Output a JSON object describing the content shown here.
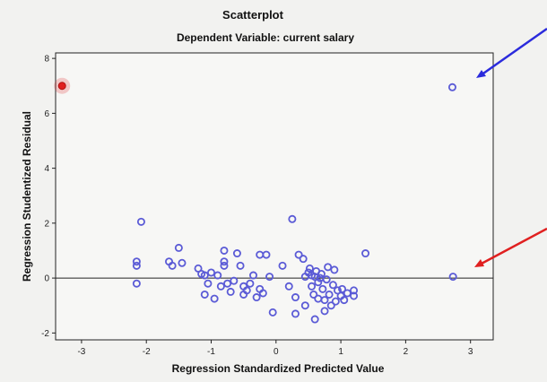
{
  "chart_data": {
    "type": "scatter",
    "title": "Scatterplot",
    "subtitle": "Dependent Variable: current salary",
    "xlabel": "Regression Standardized Predicted Value",
    "ylabel": "Regression Studentized Residual",
    "xlim": [
      -3.4,
      3.35
    ],
    "ylim": [
      -2.25,
      8.2
    ],
    "xticks": [
      -3,
      -2,
      -1,
      0,
      1,
      2,
      3
    ],
    "yticks": [
      -2,
      0,
      2,
      4,
      6,
      8
    ],
    "reference_line_y": 0,
    "grid": false,
    "marker_color": "#5b5bd6",
    "highlight_color": "#e02020",
    "arrow_colors": [
      "#2b2bdc",
      "#e02020"
    ],
    "highlighted_point": {
      "x": -3.3,
      "y": 7.0
    },
    "points": [
      {
        "x": 2.72,
        "y": 6.95
      },
      {
        "x": 2.73,
        "y": 0.05
      },
      {
        "x": -2.08,
        "y": 2.05
      },
      {
        "x": 0.25,
        "y": 2.15
      },
      {
        "x": -2.15,
        "y": 0.6
      },
      {
        "x": -2.15,
        "y": 0.45
      },
      {
        "x": -2.15,
        "y": -0.2
      },
      {
        "x": -1.65,
        "y": 0.6
      },
      {
        "x": -1.6,
        "y": 0.45
      },
      {
        "x": -1.5,
        "y": 1.1
      },
      {
        "x": -1.45,
        "y": 0.55
      },
      {
        "x": -1.2,
        "y": 0.35
      },
      {
        "x": -1.15,
        "y": 0.15
      },
      {
        "x": -1.1,
        "y": 0.1
      },
      {
        "x": -1.05,
        "y": -0.2
      },
      {
        "x": -1.1,
        "y": -0.6
      },
      {
        "x": -1.0,
        "y": 0.2
      },
      {
        "x": -0.95,
        "y": -0.75
      },
      {
        "x": -0.9,
        "y": 0.1
      },
      {
        "x": -0.85,
        "y": -0.3
      },
      {
        "x": -0.8,
        "y": 1.0
      },
      {
        "x": -0.8,
        "y": 0.6
      },
      {
        "x": -0.8,
        "y": 0.45
      },
      {
        "x": -0.75,
        "y": -0.2
      },
      {
        "x": -0.7,
        "y": -0.5
      },
      {
        "x": -0.65,
        "y": -0.1
      },
      {
        "x": -0.6,
        "y": 0.9
      },
      {
        "x": -0.55,
        "y": 0.45
      },
      {
        "x": -0.5,
        "y": -0.3
      },
      {
        "x": -0.5,
        "y": -0.6
      },
      {
        "x": -0.45,
        "y": -0.45
      },
      {
        "x": -0.4,
        "y": -0.2
      },
      {
        "x": -0.35,
        "y": 0.1
      },
      {
        "x": -0.3,
        "y": -0.7
      },
      {
        "x": -0.25,
        "y": -0.4
      },
      {
        "x": -0.25,
        "y": 0.85
      },
      {
        "x": -0.2,
        "y": -0.55
      },
      {
        "x": -0.15,
        "y": 0.85
      },
      {
        "x": -0.1,
        "y": 0.05
      },
      {
        "x": -0.05,
        "y": -1.25
      },
      {
        "x": 0.1,
        "y": 0.45
      },
      {
        "x": 0.2,
        "y": -0.3
      },
      {
        "x": 0.3,
        "y": -0.7
      },
      {
        "x": 0.3,
        "y": -1.3
      },
      {
        "x": 0.35,
        "y": 0.85
      },
      {
        "x": 0.42,
        "y": 0.7
      },
      {
        "x": 0.45,
        "y": 0.05
      },
      {
        "x": 0.45,
        "y": -1.0
      },
      {
        "x": 0.5,
        "y": 0.2
      },
      {
        "x": 0.52,
        "y": 0.35
      },
      {
        "x": 0.55,
        "y": 0.1
      },
      {
        "x": 0.55,
        "y": -0.3
      },
      {
        "x": 0.58,
        "y": -0.6
      },
      {
        "x": 0.6,
        "y": 0.05
      },
      {
        "x": 0.6,
        "y": -1.5
      },
      {
        "x": 0.62,
        "y": 0.25
      },
      {
        "x": 0.65,
        "y": -0.15
      },
      {
        "x": 0.65,
        "y": -0.75
      },
      {
        "x": 0.68,
        "y": 0.0
      },
      {
        "x": 0.7,
        "y": 0.15
      },
      {
        "x": 0.72,
        "y": -0.4
      },
      {
        "x": 0.75,
        "y": -0.8
      },
      {
        "x": 0.75,
        "y": -1.2
      },
      {
        "x": 0.78,
        "y": -0.05
      },
      {
        "x": 0.8,
        "y": 0.4
      },
      {
        "x": 0.82,
        "y": -0.6
      },
      {
        "x": 0.85,
        "y": -1.0
      },
      {
        "x": 0.88,
        "y": -0.25
      },
      {
        "x": 0.9,
        "y": 0.3
      },
      {
        "x": 0.92,
        "y": -0.85
      },
      {
        "x": 0.95,
        "y": -0.45
      },
      {
        "x": 1.0,
        "y": -0.65
      },
      {
        "x": 1.02,
        "y": -0.4
      },
      {
        "x": 1.05,
        "y": -0.8
      },
      {
        "x": 1.1,
        "y": -0.55
      },
      {
        "x": 1.2,
        "y": -0.45
      },
      {
        "x": 1.2,
        "y": -0.65
      },
      {
        "x": 1.38,
        "y": 0.9
      }
    ]
  }
}
